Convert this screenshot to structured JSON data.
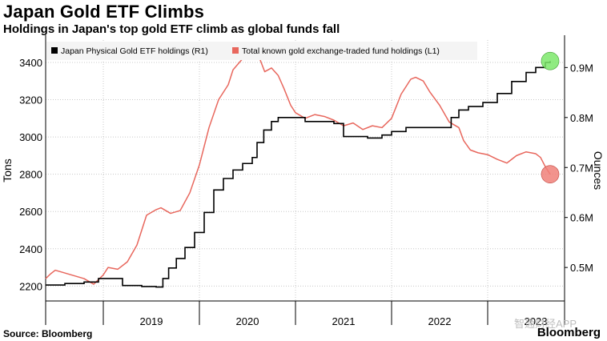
{
  "title": "Japan Gold ETF Climbs",
  "subtitle": "Holdings in Japan's top gold ETF climb as global funds fall",
  "source": "Source: Bloomberg",
  "brand": "Bloomberg",
  "watermark": "智通财经APP",
  "colors": {
    "japan": "#000000",
    "global": "#e8675d",
    "end_green": "#7de86b",
    "end_red": "#f08079",
    "grid": "#c8c8c8"
  },
  "chart_data": {
    "type": "line",
    "legend": [
      "Japan Physical Gold ETF holdings (R1)",
      "Total known gold exchange-traded fund holdings (L1)"
    ],
    "legend_position": "top",
    "left_axis": {
      "label": "Tons",
      "ticks": [
        "2200",
        "2400",
        "2600",
        "2800",
        "3000",
        "3200",
        "3400"
      ],
      "range": [
        2120,
        3520
      ]
    },
    "right_axis": {
      "label": "Ounces",
      "ticks": [
        "0.5M",
        "0.6M",
        "0.7M",
        "0.8M",
        "0.9M"
      ],
      "range": [
        0.433,
        0.955
      ]
    },
    "x_ticks": [
      "2019",
      "2020",
      "2021",
      "2022",
      "2023"
    ],
    "x_range": [
      2018.4,
      2023.8
    ],
    "series": [
      {
        "name": "Total known gold exchange-traded fund holdings (L1)",
        "axis": "left",
        "points": [
          [
            2018.4,
            2240
          ],
          [
            2018.45,
            2265
          ],
          [
            2018.5,
            2285
          ],
          [
            2018.6,
            2270
          ],
          [
            2018.7,
            2255
          ],
          [
            2018.8,
            2240
          ],
          [
            2018.9,
            2210
          ],
          [
            2019.0,
            2260
          ],
          [
            2019.05,
            2300
          ],
          [
            2019.15,
            2290
          ],
          [
            2019.25,
            2330
          ],
          [
            2019.35,
            2420
          ],
          [
            2019.45,
            2580
          ],
          [
            2019.55,
            2610
          ],
          [
            2019.6,
            2620
          ],
          [
            2019.7,
            2590
          ],
          [
            2019.8,
            2605
          ],
          [
            2019.9,
            2700
          ],
          [
            2020.0,
            2850
          ],
          [
            2020.1,
            3050
          ],
          [
            2020.2,
            3200
          ],
          [
            2020.3,
            3280
          ],
          [
            2020.35,
            3360
          ],
          [
            2020.45,
            3420
          ],
          [
            2020.55,
            3445
          ],
          [
            2020.62,
            3430
          ],
          [
            2020.68,
            3350
          ],
          [
            2020.75,
            3370
          ],
          [
            2020.82,
            3330
          ],
          [
            2020.88,
            3260
          ],
          [
            2020.95,
            3170
          ],
          [
            2021.0,
            3130
          ],
          [
            2021.1,
            3100
          ],
          [
            2021.2,
            3120
          ],
          [
            2021.3,
            3110
          ],
          [
            2021.4,
            3090
          ],
          [
            2021.5,
            3060
          ],
          [
            2021.6,
            3075
          ],
          [
            2021.7,
            3040
          ],
          [
            2021.8,
            3060
          ],
          [
            2021.9,
            3050
          ],
          [
            2022.0,
            3100
          ],
          [
            2022.1,
            3230
          ],
          [
            2022.2,
            3310
          ],
          [
            2022.25,
            3320
          ],
          [
            2022.33,
            3300
          ],
          [
            2022.4,
            3240
          ],
          [
            2022.5,
            3170
          ],
          [
            2022.6,
            3080
          ],
          [
            2022.7,
            3050
          ],
          [
            2022.75,
            2980
          ],
          [
            2022.82,
            2930
          ],
          [
            2022.9,
            2915
          ],
          [
            2023.0,
            2905
          ],
          [
            2023.1,
            2880
          ],
          [
            2023.2,
            2860
          ],
          [
            2023.3,
            2900
          ],
          [
            2023.4,
            2920
          ],
          [
            2023.5,
            2910
          ],
          [
            2023.55,
            2890
          ],
          [
            2023.6,
            2840
          ],
          [
            2023.65,
            2800
          ]
        ]
      },
      {
        "name": "Japan Physical Gold ETF holdings (R1)",
        "axis": "right",
        "points": [
          [
            2018.4,
            0.465
          ],
          [
            2018.6,
            0.468
          ],
          [
            2018.8,
            0.471
          ],
          [
            2018.95,
            0.478
          ],
          [
            2019.2,
            0.464
          ],
          [
            2019.4,
            0.462
          ],
          [
            2019.55,
            0.461
          ],
          [
            2019.62,
            0.478
          ],
          [
            2019.68,
            0.499
          ],
          [
            2019.76,
            0.518
          ],
          [
            2019.85,
            0.54
          ],
          [
            2019.95,
            0.57
          ],
          [
            2020.05,
            0.61
          ],
          [
            2020.15,
            0.655
          ],
          [
            2020.25,
            0.678
          ],
          [
            2020.35,
            0.695
          ],
          [
            2020.45,
            0.708
          ],
          [
            2020.55,
            0.72
          ],
          [
            2020.6,
            0.75
          ],
          [
            2020.67,
            0.775
          ],
          [
            2020.75,
            0.792
          ],
          [
            2020.82,
            0.8
          ],
          [
            2020.9,
            0.8
          ],
          [
            2021.0,
            0.8
          ],
          [
            2021.1,
            0.792
          ],
          [
            2021.2,
            0.792
          ],
          [
            2021.4,
            0.788
          ],
          [
            2021.5,
            0.762
          ],
          [
            2021.6,
            0.762
          ],
          [
            2021.75,
            0.759
          ],
          [
            2021.9,
            0.765
          ],
          [
            2022.0,
            0.772
          ],
          [
            2022.15,
            0.78
          ],
          [
            2022.3,
            0.78
          ],
          [
            2022.4,
            0.78
          ],
          [
            2022.55,
            0.78
          ],
          [
            2022.62,
            0.8
          ],
          [
            2022.7,
            0.815
          ],
          [
            2022.8,
            0.822
          ],
          [
            2022.95,
            0.83
          ],
          [
            2023.1,
            0.848
          ],
          [
            2023.25,
            0.872
          ],
          [
            2023.4,
            0.89
          ],
          [
            2023.5,
            0.9
          ],
          [
            2023.6,
            0.91
          ],
          [
            2023.65,
            0.913
          ]
        ]
      }
    ]
  }
}
